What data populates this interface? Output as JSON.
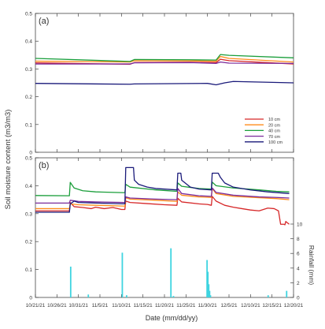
{
  "figure": {
    "ylabel": "Soil moisture content (m3/m3)",
    "xlabel": "Date (mm/dd/yy)",
    "rain_label": "Rainfall (mm)"
  },
  "chart_data": [
    {
      "type": "line",
      "panel_label": "(a)",
      "ylim": [
        0,
        0.5
      ],
      "yticks": [
        "0",
        "0.1",
        "0.2",
        "0.3",
        "0.4",
        "0.5"
      ],
      "legend_position": "bottom-right",
      "x_range_days": [
        0,
        60
      ],
      "series": [
        {
          "name": "10 cm",
          "color": "#d62728",
          "points": [
            [
              0,
              0.322
            ],
            [
              22,
              0.317
            ],
            [
              23,
              0.323
            ],
            [
              36,
              0.324
            ],
            [
              42,
              0.323
            ],
            [
              43,
              0.335
            ],
            [
              45,
              0.33
            ],
            [
              60,
              0.318
            ]
          ]
        },
        {
          "name": "20 cm",
          "color": "#ff8c1a",
          "points": [
            [
              0,
              0.328
            ],
            [
              22,
              0.325
            ],
            [
              23,
              0.33
            ],
            [
              36,
              0.329
            ],
            [
              42,
              0.328
            ],
            [
              43,
              0.345
            ],
            [
              45,
              0.338
            ],
            [
              60,
              0.325
            ]
          ]
        },
        {
          "name": "40 cm",
          "color": "#1a9e3a",
          "points": [
            [
              0,
              0.338
            ],
            [
              22,
              0.327
            ],
            [
              23,
              0.334
            ],
            [
              36,
              0.333
            ],
            [
              42,
              0.332
            ],
            [
              43,
              0.352
            ],
            [
              45,
              0.349
            ],
            [
              60,
              0.34
            ]
          ]
        },
        {
          "name": "70 cm",
          "color": "#7a2a9a",
          "points": [
            [
              0,
              0.318
            ],
            [
              22,
              0.318
            ],
            [
              23,
              0.322
            ],
            [
              36,
              0.323
            ],
            [
              42,
              0.32
            ],
            [
              43,
              0.325
            ],
            [
              45,
              0.321
            ],
            [
              60,
              0.32
            ]
          ]
        },
        {
          "name": "100 cm",
          "color": "#1a1a7a",
          "points": [
            [
              0,
              0.248
            ],
            [
              22,
              0.245
            ],
            [
              23,
              0.246
            ],
            [
              40,
              0.248
            ],
            [
              42,
              0.243
            ],
            [
              44,
              0.25
            ],
            [
              46,
              0.255
            ],
            [
              60,
              0.25
            ]
          ]
        }
      ]
    },
    {
      "type": "line",
      "panel_label": "(b)",
      "ylim": [
        0,
        0.5
      ],
      "yticks": [
        "0",
        "0.1",
        "0.2",
        "0.3",
        "0.4",
        "0.5"
      ],
      "rain_ylim": [
        0,
        10
      ],
      "rain_yticks": [
        "0",
        "2",
        "4",
        "6",
        "8",
        "10"
      ],
      "x_range_days": [
        0,
        60
      ],
      "xticks": [
        "10/21/21",
        "10/26/21",
        "10/31/21",
        "11/5/21",
        "11/10/21",
        "11/15/21",
        "11/20/21",
        "11/25/21",
        "11/30/21",
        "12/5/21",
        "12/10/21",
        "12/15/21",
        "12/20/21"
      ],
      "series": [
        {
          "name": "10 cm",
          "color": "#d62728",
          "points": [
            [
              0,
              0.31
            ],
            [
              7.9,
              0.31
            ],
            [
              8.1,
              0.34
            ],
            [
              9,
              0.325
            ],
            [
              11,
              0.322
            ],
            [
              13,
              0.318
            ],
            [
              14,
              0.323
            ],
            [
              16,
              0.318
            ],
            [
              18,
              0.322
            ],
            [
              20,
              0.315
            ],
            [
              20.8,
              0.315
            ],
            [
              21,
              0.345
            ],
            [
              22,
              0.34
            ],
            [
              26,
              0.336
            ],
            [
              30,
              0.332
            ],
            [
              32.9,
              0.33
            ],
            [
              33.1,
              0.355
            ],
            [
              34,
              0.342
            ],
            [
              38,
              0.335
            ],
            [
              40,
              0.333
            ],
            [
              40.9,
              0.33
            ],
            [
              41.1,
              0.362
            ],
            [
              42,
              0.345
            ],
            [
              44,
              0.33
            ],
            [
              46,
              0.323
            ],
            [
              48,
              0.318
            ],
            [
              50,
              0.313
            ],
            [
              52,
              0.31
            ],
            [
              54,
              0.32
            ],
            [
              55.5,
              0.318
            ],
            [
              56.5,
              0.31
            ],
            [
              57,
              0.262
            ],
            [
              57.8,
              0.262
            ],
            [
              58,
              0.26
            ],
            [
              58.2,
              0.272
            ],
            [
              59,
              0.262
            ]
          ]
        },
        {
          "name": "20 cm",
          "color": "#ff8c1a",
          "points": [
            [
              0,
              0.318
            ],
            [
              7.9,
              0.318
            ],
            [
              8.1,
              0.335
            ],
            [
              10,
              0.332
            ],
            [
              14,
              0.33
            ],
            [
              20.8,
              0.327
            ],
            [
              21,
              0.357
            ],
            [
              22,
              0.352
            ],
            [
              28,
              0.348
            ],
            [
              32.9,
              0.344
            ],
            [
              33.1,
              0.378
            ],
            [
              34,
              0.366
            ],
            [
              38,
              0.36
            ],
            [
              40.9,
              0.358
            ],
            [
              41.1,
              0.39
            ],
            [
              42,
              0.372
            ],
            [
              46,
              0.362
            ],
            [
              52,
              0.357
            ],
            [
              56,
              0.354
            ],
            [
              59,
              0.35
            ]
          ]
        },
        {
          "name": "40 cm",
          "color": "#1a9e3a",
          "points": [
            [
              0,
              0.365
            ],
            [
              7.9,
              0.364
            ],
            [
              8.1,
              0.412
            ],
            [
              9,
              0.392
            ],
            [
              11,
              0.382
            ],
            [
              14,
              0.378
            ],
            [
              20.8,
              0.375
            ],
            [
              21,
              0.405
            ],
            [
              22,
              0.395
            ],
            [
              28,
              0.385
            ],
            [
              32.9,
              0.38
            ],
            [
              33.1,
              0.41
            ],
            [
              34,
              0.398
            ],
            [
              38,
              0.39
            ],
            [
              40.9,
              0.388
            ],
            [
              41.1,
              0.413
            ],
            [
              42,
              0.4
            ],
            [
              46,
              0.392
            ],
            [
              52,
              0.385
            ],
            [
              56,
              0.38
            ],
            [
              59,
              0.378
            ]
          ]
        },
        {
          "name": "70 cm",
          "color": "#7a2a9a",
          "points": [
            [
              0,
              0.338
            ],
            [
              7.9,
              0.338
            ],
            [
              8.1,
              0.348
            ],
            [
              10,
              0.344
            ],
            [
              14,
              0.342
            ],
            [
              20.8,
              0.34
            ],
            [
              21,
              0.36
            ],
            [
              22,
              0.356
            ],
            [
              28,
              0.352
            ],
            [
              32.9,
              0.35
            ],
            [
              33.1,
              0.39
            ],
            [
              34,
              0.372
            ],
            [
              38,
              0.364
            ],
            [
              40.9,
              0.362
            ],
            [
              41.1,
              0.392
            ],
            [
              42,
              0.376
            ],
            [
              46,
              0.366
            ],
            [
              52,
              0.36
            ],
            [
              56,
              0.358
            ],
            [
              59,
              0.356
            ]
          ]
        },
        {
          "name": "100 cm",
          "color": "#1a1a7a",
          "points": [
            [
              0,
              0.305
            ],
            [
              7.9,
              0.305
            ],
            [
              8.1,
              0.335
            ],
            [
              9,
              0.345
            ],
            [
              10,
              0.34
            ],
            [
              14,
              0.338
            ],
            [
              20.8,
              0.335
            ],
            [
              21,
              0.465
            ],
            [
              22.8,
              0.465
            ],
            [
              23,
              0.42
            ],
            [
              24,
              0.405
            ],
            [
              26,
              0.395
            ],
            [
              28,
              0.39
            ],
            [
              32.9,
              0.385
            ],
            [
              33.1,
              0.445
            ],
            [
              33.8,
              0.445
            ],
            [
              34,
              0.42
            ],
            [
              36,
              0.395
            ],
            [
              38,
              0.388
            ],
            [
              40.9,
              0.385
            ],
            [
              41.1,
              0.445
            ],
            [
              42.5,
              0.445
            ],
            [
              43,
              0.43
            ],
            [
              44,
              0.41
            ],
            [
              46,
              0.395
            ],
            [
              50,
              0.385
            ],
            [
              54,
              0.378
            ],
            [
              59,
              0.372
            ]
          ]
        }
      ],
      "rainfall": [
        [
          8.2,
          4.2
        ],
        [
          12.3,
          0.4
        ],
        [
          20.2,
          6.1
        ],
        [
          21.2,
          0.3
        ],
        [
          31.5,
          6.7
        ],
        [
          32.1,
          0.2
        ],
        [
          39.9,
          5.1
        ],
        [
          40.1,
          3.5
        ],
        [
          40.3,
          1.8
        ],
        [
          40.5,
          0.9
        ],
        [
          40.7,
          0.3
        ],
        [
          54.1,
          0.3
        ],
        [
          58.4,
          0.9
        ]
      ]
    }
  ]
}
